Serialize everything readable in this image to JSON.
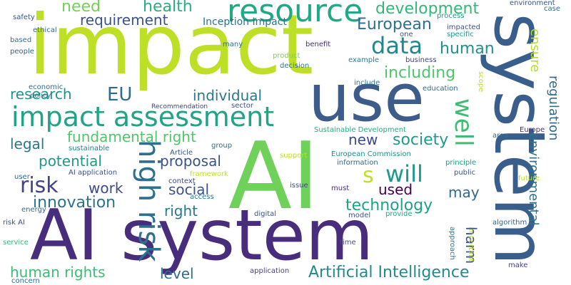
{
  "words": {
    "impact_big": "impact",
    "use": "use",
    "system_v": "system",
    "ai": "AI",
    "ai_system": "AI system",
    "resource": "resource",
    "impact_assessment": "impact assessment",
    "data": "data",
    "will": "will",
    "well": "well",
    "high_risk": "high risk",
    "risk": "risk",
    "eu": "EU",
    "need": "need",
    "health": "health",
    "development": "development",
    "requirement": "requirement",
    "european": "European",
    "human": "human",
    "including": "including",
    "research": "research",
    "individual": "individual",
    "fundamental_right": "fundamental right",
    "legal": "legal",
    "proposal": "proposal",
    "potential": "potential",
    "new": "new",
    "society": "society",
    "s": "s",
    "work": "work",
    "social": "social",
    "innovation": "innovation",
    "technology": "technology",
    "used": "used",
    "may": "may",
    "right": "right",
    "harm": "harm",
    "level": "level",
    "human_rights": "human rights",
    "artificial_intelligence": "Artificial Intelligence",
    "ensure": "ensure",
    "regulation": "regulation",
    "environmental": "environmental",
    "inception_impact": "Inception Impact",
    "sustainable_development": "Sustainable Development",
    "european_commission": "European Commission",
    "recommendation": "Recommendation",
    "safety": "safety",
    "ethical": "ethical",
    "based": "based",
    "people": "people",
    "economic": "economic",
    "policy": "policy",
    "sustainable": "sustainable",
    "ai_application": "AI application",
    "user": "user",
    "energy": "energy",
    "risk_ai": "risk AI",
    "service": "service",
    "concern": "concern",
    "many": "many",
    "benefit": "benefit",
    "product": "product",
    "decision": "decision",
    "one": "one",
    "specific": "specific",
    "impacted": "impacted",
    "process": "process",
    "environment": "environment",
    "case": "case",
    "example": "example",
    "business": "business",
    "include": "include",
    "education": "education",
    "sector": "sector",
    "group": "group",
    "article": "Article",
    "support": "support",
    "information": "information",
    "principle": "principle",
    "framework": "framework",
    "context": "context",
    "public": "public",
    "issue": "issue",
    "must": "must",
    "access": "access",
    "area": "area",
    "europe": "Europe",
    "future": "future",
    "digital": "digital",
    "model": "model",
    "provide": "provide",
    "algorithm": "algorithm",
    "time": "time",
    "application": "application",
    "make": "make",
    "scope": "scope",
    "approach": "approach",
    "important": "important"
  },
  "colors": {
    "background": "#ffffff",
    "palette": [
      "#440154",
      "#472d7b",
      "#3b528b",
      "#2c728e",
      "#21918c",
      "#28ae80",
      "#5ec962",
      "#addc30",
      "#bddf26"
    ]
  }
}
